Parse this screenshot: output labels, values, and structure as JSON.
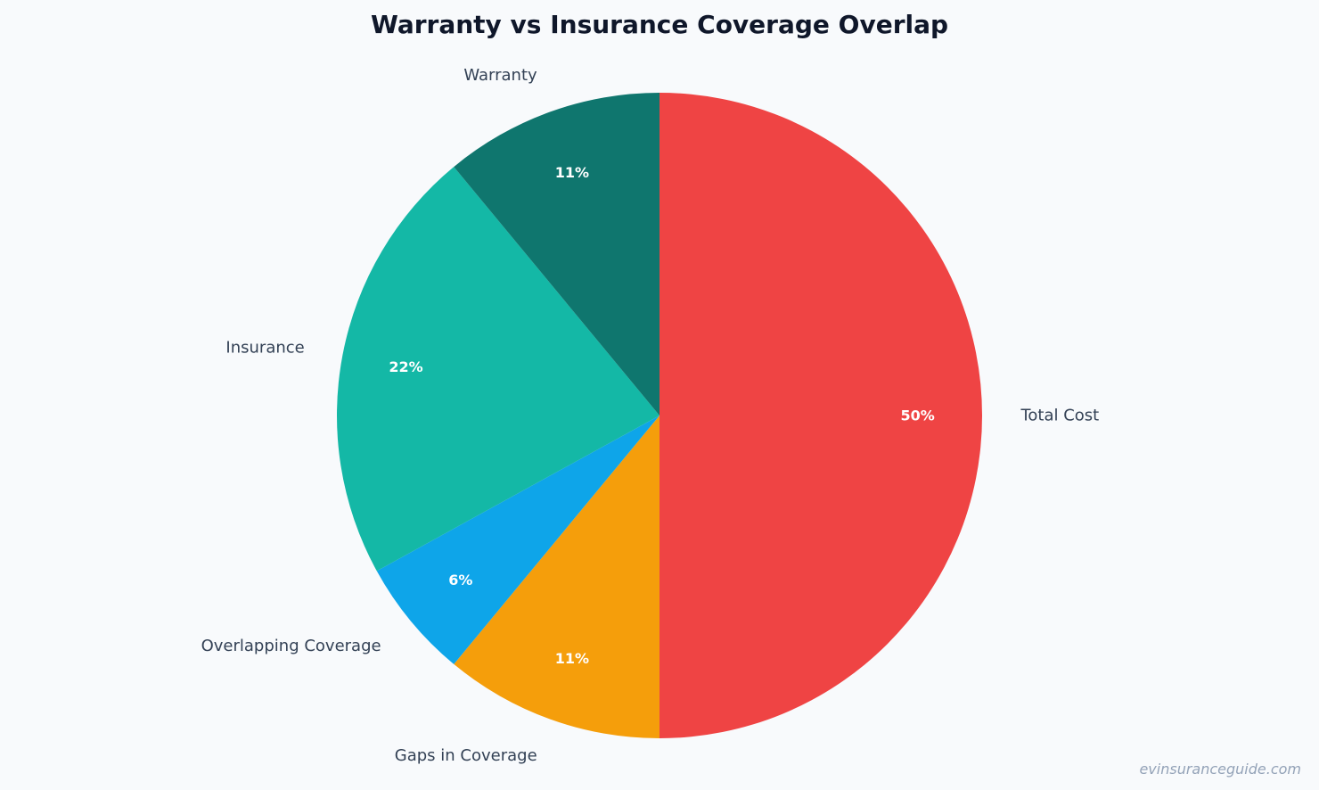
{
  "chart_data": {
    "type": "pie",
    "title": "Warranty vs Insurance Coverage Overlap",
    "categories": [
      "Total Cost",
      "Gaps in Coverage",
      "Overlapping Coverage",
      "Insurance",
      "Warranty"
    ],
    "values": [
      50,
      11,
      6,
      22,
      11
    ],
    "value_labels": [
      "50%",
      "11%",
      "6%",
      "22%",
      "11%"
    ],
    "colors": [
      "#ef4444",
      "#f59e0b",
      "#0ea5e9",
      "#14b8a6",
      "#0f766e"
    ],
    "start_angle_deg": 90,
    "direction": "clockwise",
    "legend": "none"
  },
  "watermark": "evinsuranceguide.com"
}
